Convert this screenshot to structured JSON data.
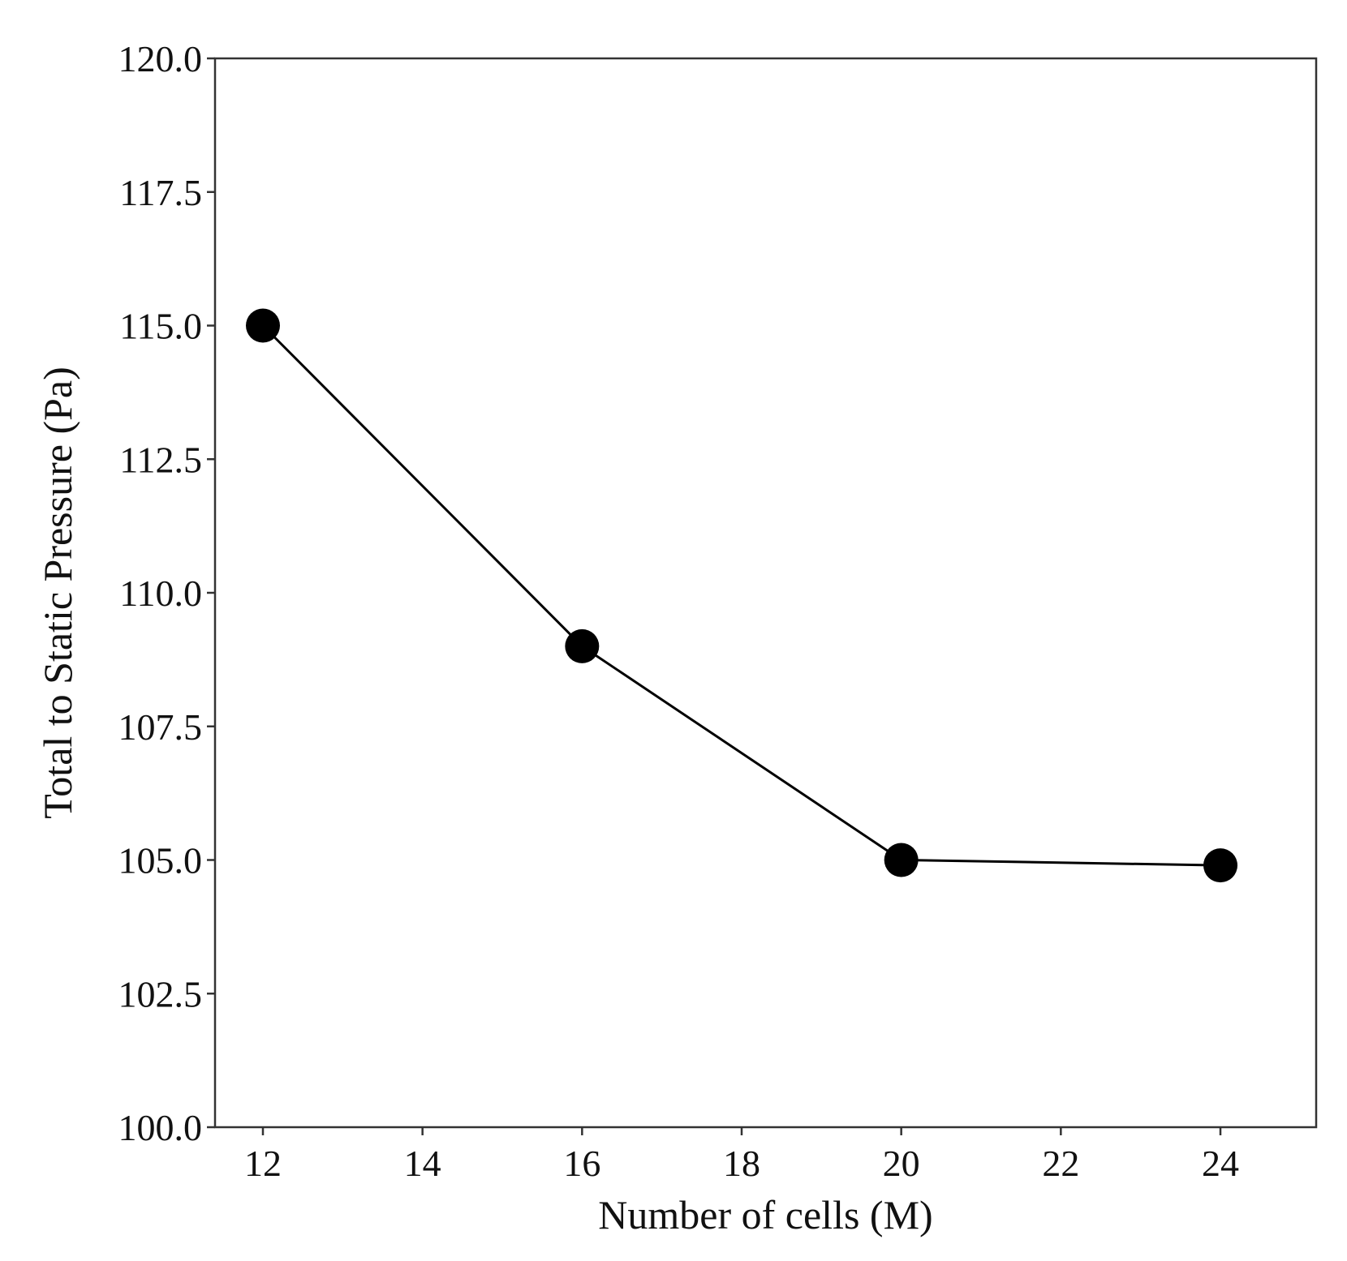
{
  "chart_data": {
    "type": "line",
    "title": "",
    "xlabel": "Number of cells (M)",
    "ylabel": "Total to Static Pressure (Pa)",
    "xlim": [
      11.4,
      25.2
    ],
    "ylim": [
      100.0,
      120.0
    ],
    "xticks": [
      12,
      14,
      16,
      18,
      20,
      22,
      24
    ],
    "xtick_labels": [
      "12",
      "14",
      "16",
      "18",
      "20",
      "22",
      "24"
    ],
    "yticks": [
      100.0,
      102.5,
      105.0,
      107.5,
      110.0,
      112.5,
      115.0,
      117.5,
      120.0
    ],
    "ytick_labels": [
      "100.0",
      "102.5",
      "105.0",
      "107.5",
      "110.0",
      "112.5",
      "115.0",
      "117.5",
      "120.0"
    ],
    "grid": false,
    "legend": "none",
    "series": [
      {
        "x": [
          12,
          16,
          20,
          24
        ],
        "y": [
          115.0,
          109.0,
          105.0,
          104.9
        ],
        "color": "#000000",
        "marker": "circle"
      }
    ]
  }
}
